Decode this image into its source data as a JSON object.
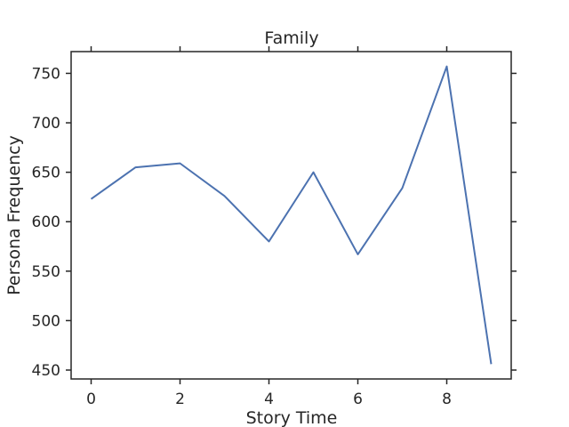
{
  "chart_data": {
    "type": "line",
    "title": "Family",
    "xlabel": "Story Time",
    "ylabel": "Persona Frequency",
    "xlim": [
      -0.45,
      9.45
    ],
    "ylim": [
      441,
      772
    ],
    "x_ticks": [
      0,
      2,
      4,
      6,
      8
    ],
    "y_ticks": [
      450,
      500,
      550,
      600,
      650,
      700,
      750
    ],
    "grid": false,
    "series": [
      {
        "x": [
          0,
          1,
          2,
          3,
          4,
          5,
          6,
          7,
          8,
          9
        ],
        "values": [
          623,
          655,
          659,
          626,
          580,
          650,
          567,
          634,
          757,
          456
        ],
        "color": "#4c72b0"
      }
    ]
  }
}
